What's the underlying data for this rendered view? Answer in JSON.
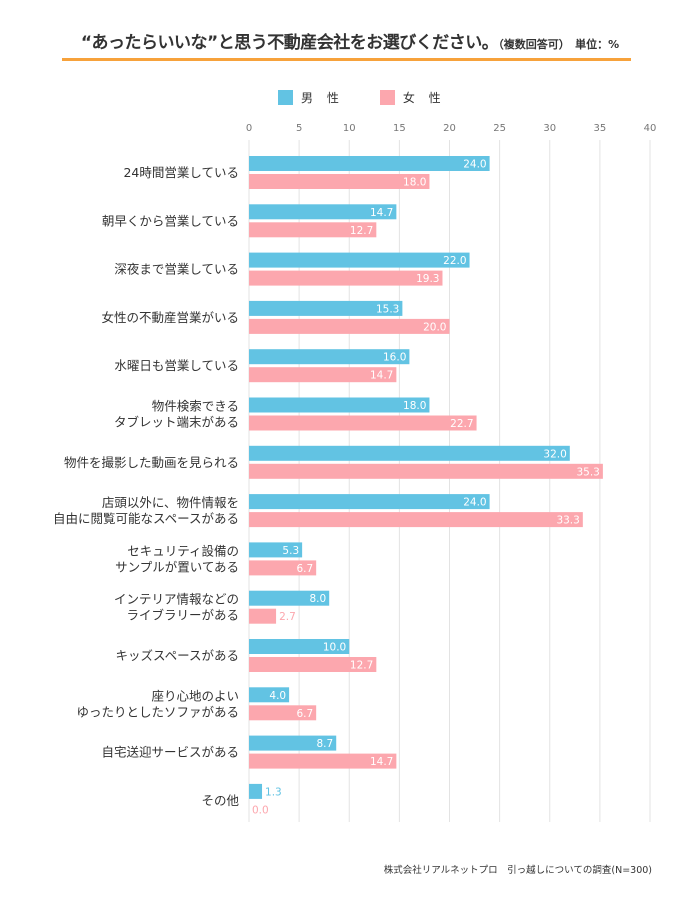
{
  "title": {
    "main": "“あったらいいな”と思う不動産会社をお選びください。",
    "sub": "（複数回答可）",
    "unit": "単位：%"
  },
  "footer": "株式会社リアルネットプロ　引っ越しについての調査(N=300)",
  "colors": {
    "male": "#62c3e3",
    "female": "#fca7ae",
    "accent_rule": "#f7a23b",
    "grid": "#e3e3e3"
  },
  "chart_data": {
    "type": "bar",
    "orientation": "horizontal",
    "title": "“あったらいいな”と思う不動産会社をお選びください。（複数回答可） 単位：%",
    "xlabel": "",
    "ylabel": "",
    "xlim": [
      0,
      40
    ],
    "x_ticks": [
      0,
      5,
      10,
      15,
      20,
      25,
      30,
      35,
      40
    ],
    "grid": true,
    "legend_position": "top",
    "categories": [
      [
        "24時間営業している"
      ],
      [
        "朝早くから営業している"
      ],
      [
        "深夜まで営業している"
      ],
      [
        "女性の不動産営業がいる"
      ],
      [
        "水曜日も営業している"
      ],
      [
        "物件検索できる",
        "タブレット端末がある"
      ],
      [
        "物件を撮影した動画を見られる"
      ],
      [
        "店頭以外に、物件情報を",
        "自由に閲覧可能なスペースがある"
      ],
      [
        "セキュリティ設備の",
        "サンプルが置いてある"
      ],
      [
        "インテリア情報などの",
        "ライブラリーがある"
      ],
      [
        "キッズスペースがある"
      ],
      [
        "座り心地のよい",
        "ゆったりとしたソファがある"
      ],
      [
        "自宅送迎サービスがある"
      ],
      [
        "その他"
      ]
    ],
    "series": [
      {
        "name": "男 性",
        "key": "male",
        "values": [
          24.0,
          14.7,
          22.0,
          15.3,
          16.0,
          18.0,
          32.0,
          24.0,
          5.3,
          8.0,
          10.0,
          4.0,
          8.7,
          1.3
        ]
      },
      {
        "name": "女 性",
        "key": "female",
        "values": [
          18.0,
          12.7,
          19.3,
          20.0,
          14.7,
          22.7,
          35.3,
          33.3,
          6.7,
          2.7,
          12.7,
          6.7,
          14.7,
          0.0
        ]
      }
    ]
  }
}
